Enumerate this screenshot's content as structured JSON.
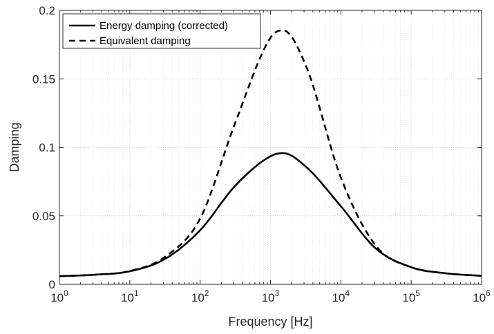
{
  "chart_data": {
    "type": "line",
    "xlabel": "Frequency [Hz]",
    "ylabel": "Damping",
    "xscale": "log",
    "xlim": [
      1,
      1000000
    ],
    "ylim": [
      0,
      0.2
    ],
    "grid": true,
    "legend_location": "top-left",
    "x_ticks": [
      {
        "value": 1,
        "base": "10",
        "exp": "0"
      },
      {
        "value": 10,
        "base": "10",
        "exp": "1"
      },
      {
        "value": 100,
        "base": "10",
        "exp": "2"
      },
      {
        "value": 1000,
        "base": "10",
        "exp": "3"
      },
      {
        "value": 10000,
        "base": "10",
        "exp": "4"
      },
      {
        "value": 100000,
        "base": "10",
        "exp": "5"
      },
      {
        "value": 1000000,
        "base": "10",
        "exp": "6"
      }
    ],
    "y_ticks": [
      {
        "value": 0,
        "label": "0"
      },
      {
        "value": 0.05,
        "label": "0.05"
      },
      {
        "value": 0.1,
        "label": "0.1"
      },
      {
        "value": 0.15,
        "label": "0.15"
      },
      {
        "value": 0.2,
        "label": "0.2"
      }
    ],
    "series": [
      {
        "name": "Energy damping (corrected)",
        "style": "solid",
        "color": "#000000",
        "x": [
          1,
          3.16,
          10,
          31.6,
          100,
          316,
          1000,
          1500,
          3162,
          10000,
          31623,
          100000,
          316228,
          1000000
        ],
        "y": [
          0.0059,
          0.007,
          0.0095,
          0.0185,
          0.0395,
          0.072,
          0.0935,
          0.0958,
          0.086,
          0.057,
          0.026,
          0.0125,
          0.008,
          0.0062
        ]
      },
      {
        "name": "Equivalent damping",
        "style": "dashed",
        "color": "#000000",
        "x": [
          1,
          3.16,
          10,
          31.6,
          100,
          316,
          1000,
          1500,
          3162,
          10000,
          31623,
          100000,
          316228,
          1000000
        ],
        "y": [
          0.0059,
          0.007,
          0.0097,
          0.02,
          0.048,
          0.118,
          0.18,
          0.1855,
          0.16,
          0.078,
          0.028,
          0.0125,
          0.008,
          0.0062
        ]
      }
    ]
  }
}
